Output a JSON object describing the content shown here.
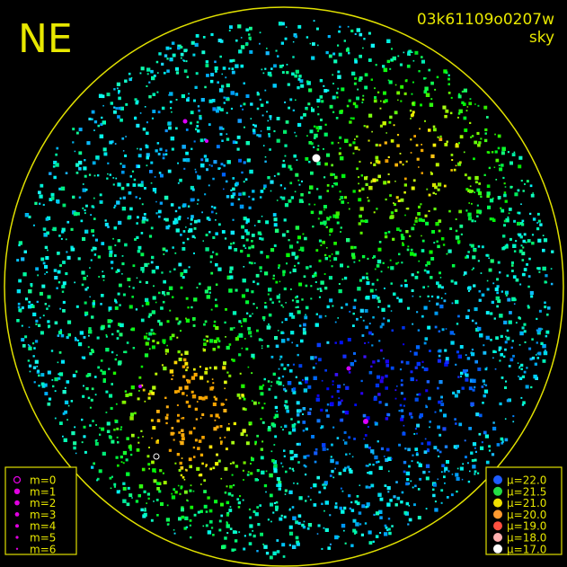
{
  "header": {
    "corner_label": "NE",
    "frame_id": "03k61109o0207w",
    "subtitle": "sky"
  },
  "legend_magnitude": [
    "m=0",
    "m=1",
    "m=2",
    "m=3",
    "m=4",
    "m=5",
    "m=6"
  ],
  "legend_brightness": [
    "μ=22.0",
    "μ=21.5",
    "μ=21.0",
    "μ=20.0",
    "μ=19.0",
    "μ=18.0",
    "μ=17.0"
  ]
}
